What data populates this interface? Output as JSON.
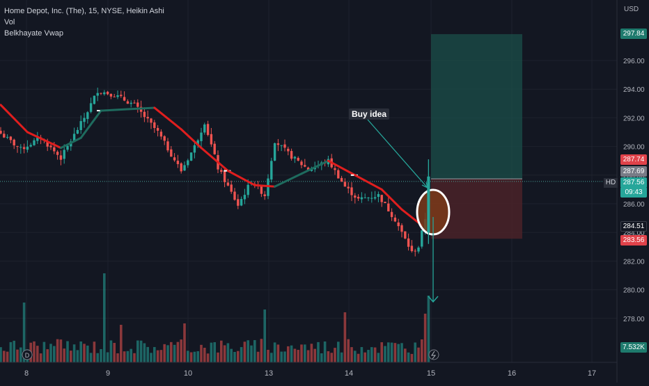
{
  "header": {
    "title": "Home Depot, Inc. (The), 15, NYSE, Heikin Ashi",
    "indicator_vol": "Vol",
    "indicator_vwap": "Belkhayate Vwap"
  },
  "price_axis": {
    "currency": "USD",
    "ticks": [
      "296.00",
      "294.00",
      "292.00",
      "290.00",
      "288.00",
      "286.00",
      "284.00",
      "282.00",
      "280.00",
      "278.00"
    ],
    "tick_values": [
      296,
      294,
      292,
      290,
      288,
      286,
      284,
      282,
      280,
      278
    ]
  },
  "time_axis": {
    "labels": [
      "8",
      "9",
      "10",
      "13",
      "14",
      "15",
      "16",
      "17"
    ]
  },
  "price_tags": {
    "target": "297.84",
    "entry_high": "287.74",
    "last": "287.69",
    "current": "287.56",
    "countdown": "09:43",
    "vwap": "284.51",
    "stop": "283.56",
    "volume": "7.532K",
    "symbol": "HD"
  },
  "annotation": {
    "text": "Buy idea"
  },
  "colors": {
    "bull": "#26a69a",
    "bear": "#ef5350",
    "vwap_bear": "#e01e1e",
    "vwap_bull": "#1e6b5e",
    "target_zone": "#1b4f4a",
    "stop_zone": "#4a2228",
    "background": "#131722"
  },
  "chart_data": {
    "type": "candlestick",
    "chart_style": "Heikin Ashi",
    "interval": "15",
    "exchange": "NYSE",
    "symbol": "HD",
    "y_range": [
      276.5,
      299.5
    ],
    "price_key_points": [
      {
        "t": 0,
        "close": 290.9
      },
      {
        "t": 6,
        "close": 289.8
      },
      {
        "t": 12,
        "close": 290.6
      },
      {
        "t": 18,
        "close": 289.2
      },
      {
        "t": 25,
        "close": 292.0
      },
      {
        "t": 29,
        "close": 293.9
      },
      {
        "t": 34,
        "close": 293.6
      },
      {
        "t": 40,
        "close": 292.9
      },
      {
        "t": 47,
        "close": 291.0
      },
      {
        "t": 54,
        "close": 288.3
      },
      {
        "t": 58,
        "close": 290.0
      },
      {
        "t": 61,
        "close": 291.7
      },
      {
        "t": 65,
        "close": 288.5
      },
      {
        "t": 71,
        "close": 285.9
      },
      {
        "t": 75,
        "close": 287.6
      },
      {
        "t": 79,
        "close": 286.6
      },
      {
        "t": 82,
        "close": 290.4
      },
      {
        "t": 87,
        "close": 289.3
      },
      {
        "t": 92,
        "close": 288.4
      },
      {
        "t": 98,
        "close": 289.0
      },
      {
        "t": 103,
        "close": 287.2
      },
      {
        "t": 107,
        "close": 286.3
      },
      {
        "t": 113,
        "close": 286.6
      },
      {
        "t": 118,
        "close": 284.9
      },
      {
        "t": 123,
        "close": 282.6
      },
      {
        "t": 125,
        "close": 283.0
      },
      {
        "t": 127,
        "close": 285.0
      },
      {
        "t": 128,
        "close": 287.6
      }
    ],
    "vwap_points": [
      {
        "t": 0,
        "v": 292.9
      },
      {
        "t": 8,
        "v": 291.0
      },
      {
        "t": 18,
        "v": 289.9
      },
      {
        "t": 24,
        "v": 290.6
      },
      {
        "t": 30,
        "v": 292.5
      },
      {
        "t": 38,
        "v": 292.6
      },
      {
        "t": 46,
        "v": 292.7
      },
      {
        "t": 54,
        "v": 291.2
      },
      {
        "t": 60,
        "v": 289.9
      },
      {
        "t": 68,
        "v": 288.3
      },
      {
        "t": 76,
        "v": 287.3
      },
      {
        "t": 82,
        "v": 287.2
      },
      {
        "t": 90,
        "v": 288.1
      },
      {
        "t": 98,
        "v": 289.0
      },
      {
        "t": 106,
        "v": 288.0
      },
      {
        "t": 114,
        "v": 287.0
      },
      {
        "t": 120,
        "v": 285.6
      },
      {
        "t": 126,
        "v": 284.5
      }
    ],
    "trade_setup": {
      "target": 297.84,
      "entry": 287.74,
      "stop": 283.56
    },
    "volume_last": "7.532K"
  }
}
